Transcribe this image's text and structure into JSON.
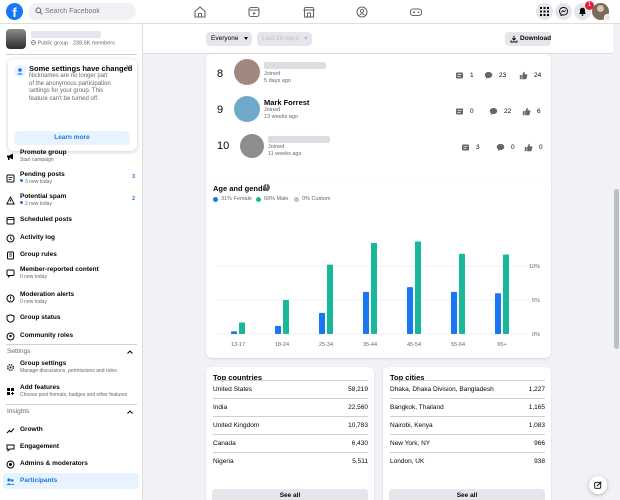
{
  "topbar": {
    "logo": "f",
    "search_placeholder": "Search Facebook",
    "notification_count": "1"
  },
  "sidebar": {
    "group_meta": "Public group · 238.6K members",
    "notice": {
      "title": "Some settings have changed",
      "body": "Nicknames are no longer part of the anonymous participation settings for your group. This feature can't be turned off.",
      "button": "Learn more"
    },
    "items": [
      {
        "label": "Promote group",
        "sub": "Start campaign"
      },
      {
        "label": "Pending posts",
        "sub": "3 new today",
        "count": "3"
      },
      {
        "label": "Potential spam",
        "sub": "2 new today",
        "count": "2"
      },
      {
        "label": "Scheduled posts"
      },
      {
        "label": "Activity log"
      },
      {
        "label": "Group rules"
      },
      {
        "label": "Member-reported content",
        "sub": "0 new today"
      },
      {
        "label": "Moderation alerts",
        "sub": "0 new today"
      },
      {
        "label": "Group status"
      },
      {
        "label": "Community roles"
      }
    ],
    "settings_header": "Settings",
    "settings_items": [
      {
        "label": "Group settings",
        "sub": "Manage discussions, permissions and roles"
      },
      {
        "label": "Add features",
        "sub": "Choose post formats, badges and other features"
      }
    ],
    "insights_header": "Insights",
    "insights_items": [
      {
        "label": "Growth"
      },
      {
        "label": "Engagement"
      },
      {
        "label": "Admins & moderators"
      },
      {
        "label": "Participants"
      }
    ]
  },
  "toolbar": {
    "audience": "Everyone",
    "range": "Last 28 days",
    "download": "Download"
  },
  "contributors": [
    {
      "rank": "8",
      "joined": "Joined",
      "ago": "5 days ago",
      "posts": "1",
      "comments": "23",
      "reactions": "24"
    },
    {
      "rank": "9",
      "name": "Mark Forrest",
      "joined": "Joined",
      "ago": "13 weeks ago",
      "posts": "0",
      "comments": "22",
      "reactions": "6"
    },
    {
      "rank": "10",
      "joined": "Joined",
      "ago": "11 weeks ago",
      "posts": "3",
      "comments": "0",
      "reactions": "0"
    }
  ],
  "age_gender": {
    "title": "Age and gender",
    "legend": [
      "31% Female",
      "69% Male",
      "0% Custom"
    ],
    "colors": {
      "female": "#1877f2",
      "male": "#18b99a",
      "custom": "#bcc0c4"
    }
  },
  "chart_data": {
    "type": "bar",
    "categories": [
      "13-17",
      "18-24",
      "25-34",
      "35-44",
      "45-54",
      "55-64",
      "65+"
    ],
    "series": [
      {
        "name": "31% Female",
        "values": [
          0.4,
          1.2,
          3.1,
          6.2,
          6.9,
          6.2,
          6.0
        ]
      },
      {
        "name": "69% Male",
        "values": [
          1.7,
          5.0,
          10.2,
          13.4,
          13.6,
          11.8,
          11.7
        ]
      },
      {
        "name": "0% Custom",
        "values": [
          0,
          0,
          0,
          0,
          0,
          0,
          0
        ]
      }
    ],
    "yticks": [
      "0%",
      "5%",
      "10%"
    ],
    "ylim": [
      0,
      15
    ],
    "grid": true
  },
  "top_countries": {
    "title": "Top countries",
    "rows": [
      {
        "name": "United States",
        "value": "58,219"
      },
      {
        "name": "India",
        "value": "22,560"
      },
      {
        "name": "United Kingdom",
        "value": "10,783"
      },
      {
        "name": "Canada",
        "value": "6,430"
      },
      {
        "name": "Nigeria",
        "value": "5,511"
      }
    ],
    "button": "See all"
  },
  "top_cities": {
    "title": "Top cities",
    "rows": [
      {
        "name": "Dhaka, Dhaka Division, Bangladesh",
        "value": "1,227"
      },
      {
        "name": "Bangkok, Thailand",
        "value": "1,165"
      },
      {
        "name": "Nairobi, Kenya",
        "value": "1,083"
      },
      {
        "name": "New York, NY",
        "value": "966"
      },
      {
        "name": "London, UK",
        "value": "938"
      }
    ],
    "button": "See all"
  }
}
